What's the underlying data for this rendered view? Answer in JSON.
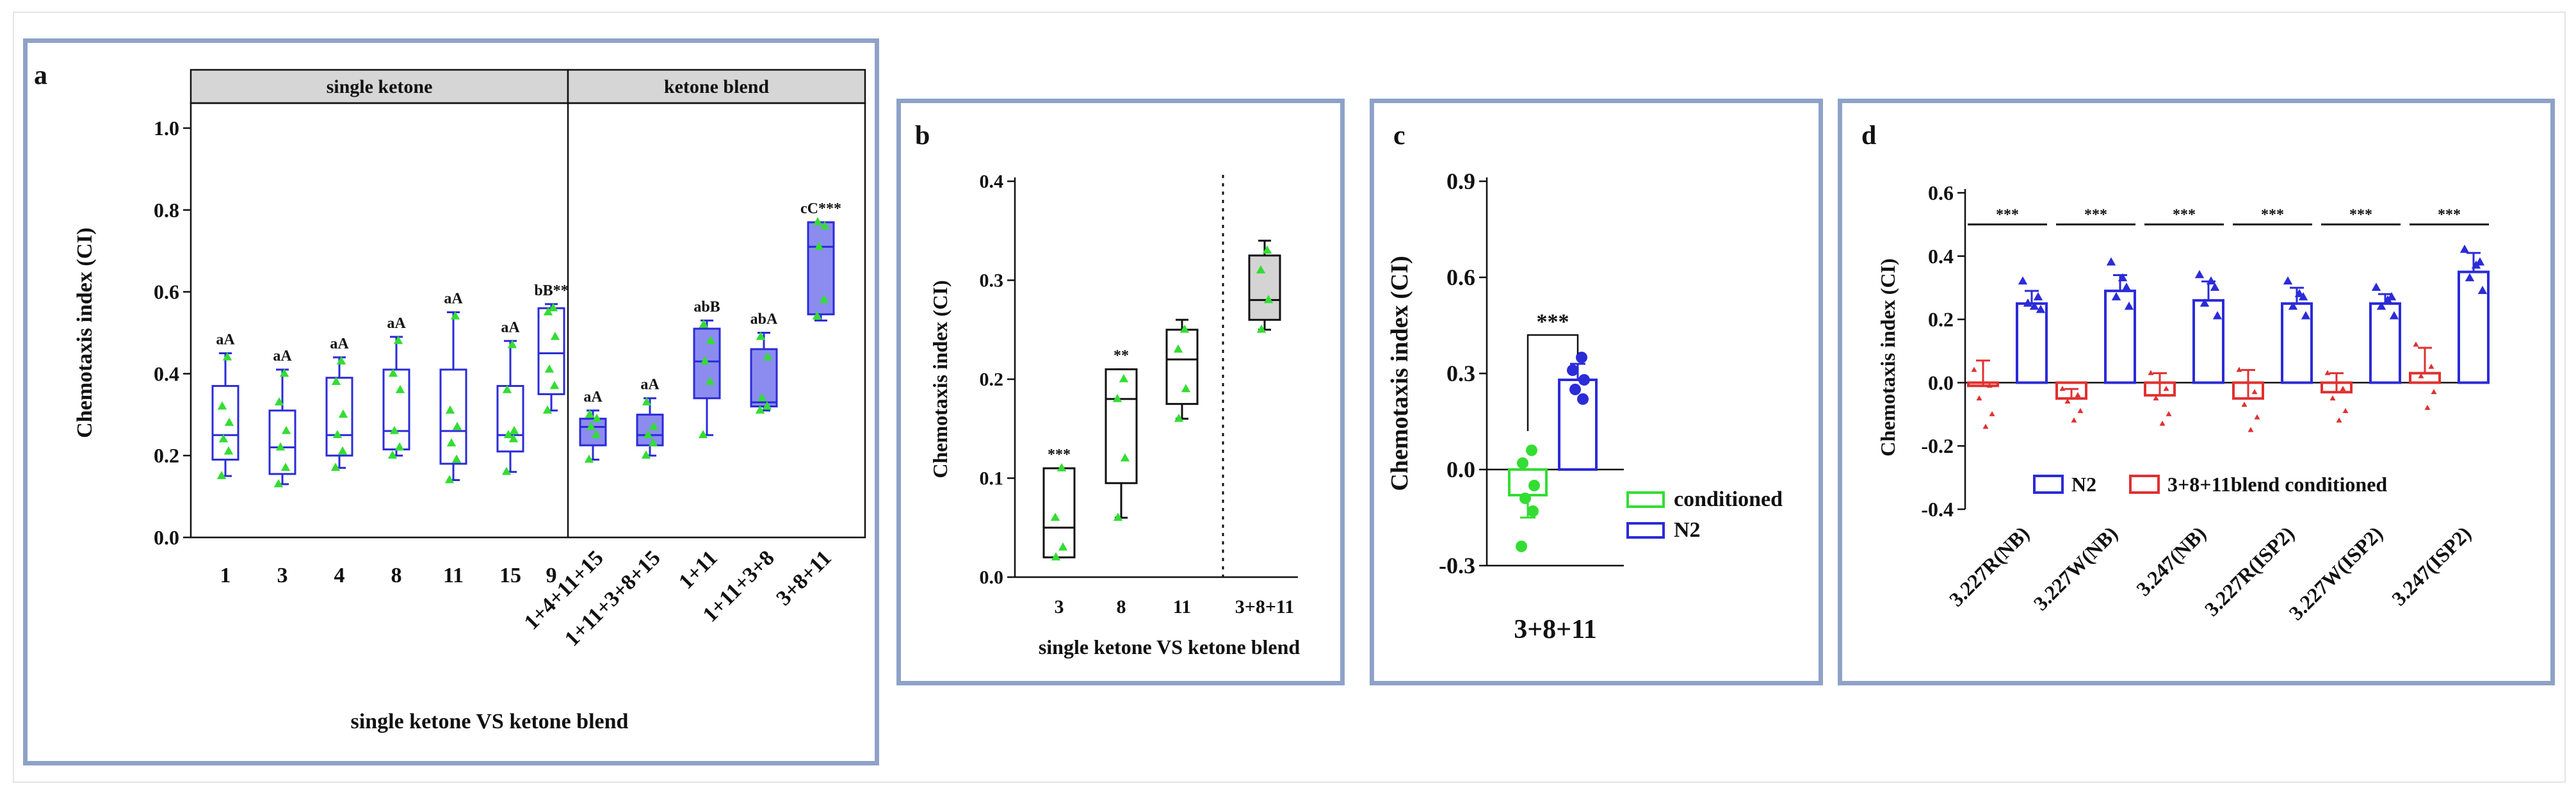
{
  "chart_data": [
    {
      "panel": "a",
      "type": "box",
      "strip_labels": [
        "single ketone",
        "ketone blend"
      ],
      "ylabel": "Chemotaxis index (CI)",
      "xlabel": "single ketone VS ketone blend",
      "ylim": [
        0,
        1.0
      ],
      "yticks": [
        "0.0",
        "0.2",
        "0.4",
        "0.6",
        "0.8",
        "1.0"
      ],
      "yticks_v": [
        0,
        0.2,
        0.4,
        0.6,
        0.8,
        1.0
      ],
      "groups": [
        {
          "label": "1",
          "min": 0.15,
          "q1": 0.19,
          "med": 0.25,
          "q3": 0.37,
          "max": 0.45,
          "ann": "aA",
          "pts": [
            0.15,
            0.21,
            0.24,
            0.28,
            0.32,
            0.44
          ],
          "fill": false
        },
        {
          "label": "3",
          "min": 0.13,
          "q1": 0.155,
          "med": 0.22,
          "q3": 0.31,
          "max": 0.41,
          "ann": "aA",
          "pts": [
            0.13,
            0.17,
            0.22,
            0.26,
            0.33,
            0.4
          ],
          "fill": false
        },
        {
          "label": "4",
          "min": 0.17,
          "q1": 0.2,
          "med": 0.25,
          "q3": 0.39,
          "max": 0.44,
          "ann": "aA",
          "pts": [
            0.17,
            0.21,
            0.25,
            0.3,
            0.38,
            0.43
          ],
          "fill": false
        },
        {
          "label": "8",
          "min": 0.2,
          "q1": 0.215,
          "med": 0.26,
          "q3": 0.41,
          "max": 0.49,
          "ann": "aA",
          "pts": [
            0.2,
            0.22,
            0.26,
            0.36,
            0.4,
            0.48
          ],
          "fill": false
        },
        {
          "label": "11",
          "min": 0.14,
          "q1": 0.18,
          "med": 0.26,
          "q3": 0.41,
          "max": 0.55,
          "ann": "aA",
          "pts": [
            0.14,
            0.19,
            0.23,
            0.27,
            0.31,
            0.54
          ],
          "fill": false
        },
        {
          "label": "15",
          "min": 0.16,
          "q1": 0.21,
          "med": 0.25,
          "q3": 0.37,
          "max": 0.48,
          "ann": "aA",
          "pts": [
            0.16,
            0.24,
            0.25,
            0.26,
            0.36,
            0.47
          ],
          "fill": false
        },
        {
          "label": "9",
          "min": 0.31,
          "q1": 0.35,
          "med": 0.45,
          "q3": 0.56,
          "max": 0.57,
          "ann": "bB**",
          "pts": [
            0.31,
            0.37,
            0.41,
            0.49,
            0.55,
            0.56
          ],
          "fill": false
        },
        {
          "label": "1+4+11+15",
          "min": 0.19,
          "q1": 0.225,
          "med": 0.27,
          "q3": 0.29,
          "max": 0.31,
          "ann": "aA",
          "pts": [
            0.19,
            0.25,
            0.27,
            0.29,
            0.3
          ],
          "fill": true
        },
        {
          "label": "1+11+3+8+15",
          "min": 0.2,
          "q1": 0.225,
          "med": 0.25,
          "q3": 0.3,
          "max": 0.34,
          "ann": "aA",
          "pts": [
            0.2,
            0.23,
            0.25,
            0.27,
            0.33
          ],
          "fill": true
        },
        {
          "label": "1+11",
          "min": 0.25,
          "q1": 0.34,
          "med": 0.43,
          "q3": 0.51,
          "max": 0.53,
          "ann": "abB",
          "pts": [
            0.25,
            0.38,
            0.43,
            0.48,
            0.52
          ],
          "fill": true
        },
        {
          "label": "1+11+3+8",
          "min": 0.31,
          "q1": 0.32,
          "med": 0.33,
          "q3": 0.46,
          "max": 0.5,
          "ann": "abA",
          "pts": [
            0.31,
            0.32,
            0.34,
            0.44,
            0.49
          ],
          "fill": true
        },
        {
          "label": "3+8+11",
          "min": 0.53,
          "q1": 0.545,
          "med": 0.71,
          "q3": 0.77,
          "max": 0.77,
          "ann": "cC***",
          "pts": [
            0.54,
            0.58,
            0.71,
            0.76,
            0.77
          ],
          "fill": true
        }
      ]
    },
    {
      "panel": "b",
      "type": "box",
      "ylabel": "Chemotaxis index (CI)",
      "xlabel": "single ketone VS ketone blend",
      "ylim": [
        0,
        0.4
      ],
      "yticks": [
        "0.0",
        "0.1",
        "0.2",
        "0.3",
        "0.4"
      ],
      "yticks_v": [
        0,
        0.1,
        0.2,
        0.3,
        0.4
      ],
      "groups": [
        {
          "label": "3",
          "min": 0.02,
          "q1": 0.02,
          "med": 0.05,
          "q3": 0.11,
          "max": 0.11,
          "ann": "***",
          "pts": [
            0.02,
            0.03,
            0.06,
            0.11
          ],
          "fill": false
        },
        {
          "label": "8",
          "min": 0.06,
          "q1": 0.095,
          "med": 0.18,
          "q3": 0.21,
          "max": 0.21,
          "ann": "**",
          "pts": [
            0.06,
            0.12,
            0.18,
            0.2
          ],
          "fill": false
        },
        {
          "label": "11",
          "min": 0.16,
          "q1": 0.175,
          "med": 0.22,
          "q3": 0.25,
          "max": 0.26,
          "ann": "",
          "pts": [
            0.16,
            0.19,
            0.23,
            0.25
          ],
          "fill": false
        },
        {
          "label": "3+8+11",
          "min": 0.25,
          "q1": 0.26,
          "med": 0.28,
          "q3": 0.325,
          "max": 0.34,
          "ann": "",
          "pts": [
            0.25,
            0.28,
            0.31,
            0.33
          ],
          "fill": true
        }
      ]
    },
    {
      "panel": "c",
      "type": "bar",
      "ylabel": "Chemotaxis index (CI)",
      "xlabel": "3+8+11",
      "ylim": [
        -0.3,
        0.9
      ],
      "yticks": [
        "-0.3",
        "0.0",
        "0.3",
        "0.6",
        "0.9"
      ],
      "yticks_v": [
        -0.3,
        0,
        0.3,
        0.6,
        0.9
      ],
      "sig": "***",
      "series": [
        {
          "name": "conditioned",
          "mean": -0.08,
          "err": 0.07,
          "pts": [
            0.06,
            0.02,
            -0.05,
            -0.09,
            -0.13,
            -0.24
          ],
          "color": "#33dd33"
        },
        {
          "name": "N2",
          "mean": 0.28,
          "err": 0.05,
          "pts": [
            0.35,
            0.31,
            0.28,
            0.25,
            0.22
          ],
          "color": "#2b2bd8"
        }
      ],
      "legend": [
        "conditioned",
        "N2"
      ]
    },
    {
      "panel": "d",
      "type": "grouped_bar",
      "ylabel": "Chemotaxis index (CI)",
      "ylim": [
        -0.4,
        0.6
      ],
      "yticks": [
        "-0.4",
        "-0.2",
        "0.0",
        "0.2",
        "0.4",
        "0.6"
      ],
      "yticks_v": [
        -0.4,
        -0.2,
        0,
        0.2,
        0.4,
        0.6
      ],
      "categories": [
        "3.227R(NB)",
        "3.227W(NB)",
        "3.247(NB)",
        "3.227R(ISP2)",
        "3.227W(ISP2)",
        "3.247(ISP2)"
      ],
      "sig": [
        "***",
        "***",
        "***",
        "***",
        "***",
        "***"
      ],
      "series": [
        {
          "name": "3+8+11blend conditioned",
          "color": "#e03030",
          "values": [
            -0.01,
            -0.05,
            -0.04,
            -0.05,
            -0.03,
            0.03
          ],
          "err": [
            0.08,
            0.03,
            0.07,
            0.09,
            0.06,
            0.08
          ],
          "pts": [
            [
              0.04,
              -0.01,
              -0.05,
              -0.1,
              -0.14
            ],
            [
              -0.02,
              -0.04,
              -0.06,
              -0.09,
              -0.12
            ],
            [
              0.03,
              -0.02,
              -0.05,
              -0.1,
              -0.13
            ],
            [
              0.04,
              -0.03,
              -0.07,
              -0.11,
              -0.15
            ],
            [
              0.03,
              -0.02,
              -0.05,
              -0.09,
              -0.12
            ],
            [
              0.12,
              0.05,
              0.02,
              -0.03,
              -0.08
            ]
          ]
        },
        {
          "name": "N2",
          "color": "#2b2bd8",
          "values": [
            0.25,
            0.29,
            0.26,
            0.25,
            0.25,
            0.35
          ],
          "err": [
            0.04,
            0.05,
            0.06,
            0.05,
            0.03,
            0.06
          ],
          "pts": [
            [
              0.32,
              0.27,
              0.25,
              0.23,
              0.24
            ],
            [
              0.38,
              0.3,
              0.27,
              0.24,
              0.33
            ],
            [
              0.34,
              0.3,
              0.25,
              0.21,
              0.32
            ],
            [
              0.32,
              0.27,
              0.24,
              0.21,
              0.28
            ],
            [
              0.3,
              0.27,
              0.24,
              0.21,
              0.26
            ],
            [
              0.42,
              0.38,
              0.33,
              0.29,
              0.37
            ]
          ]
        }
      ],
      "legend": [
        "N2",
        "3+8+11blend conditioned"
      ]
    }
  ],
  "panel_labels": [
    "a",
    "b",
    "c",
    "d"
  ]
}
